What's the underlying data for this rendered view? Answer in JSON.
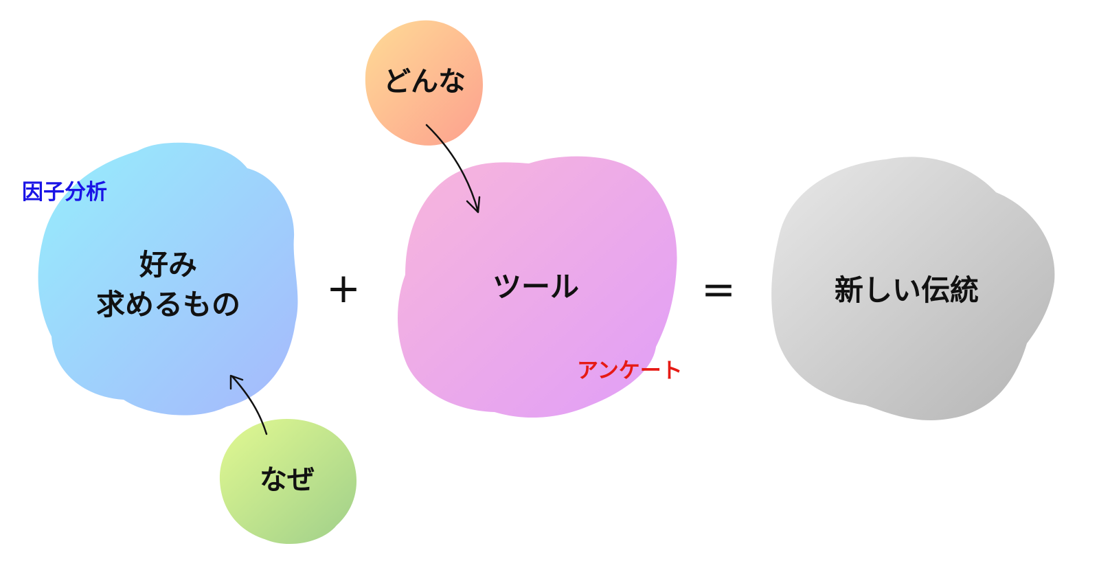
{
  "blobs": {
    "preference": {
      "lines": [
        "好み",
        "求めるもの"
      ],
      "gradient": [
        "#96eefc",
        "#a6b8fc"
      ]
    },
    "why": {
      "label": "なぜ",
      "gradient": [
        "#e2f991",
        "#9fcf8a"
      ]
    },
    "what_kind": {
      "label": "どんな",
      "gradient": [
        "#fedb96",
        "#fda08e"
      ]
    },
    "tool": {
      "label": "ツール",
      "gradient": [
        "#f8b6db",
        "#e09ef8"
      ]
    },
    "result": {
      "label": "新しい伝統",
      "gradient": [
        "#e8e8e8",
        "#b4b4b4"
      ]
    }
  },
  "annotations": {
    "factor_analysis": {
      "label": "因子分析",
      "color": "#1a14e6"
    },
    "survey": {
      "label": "アンケート",
      "color": "#e61a14"
    }
  },
  "operators": {
    "plus": "+",
    "equals": "="
  }
}
